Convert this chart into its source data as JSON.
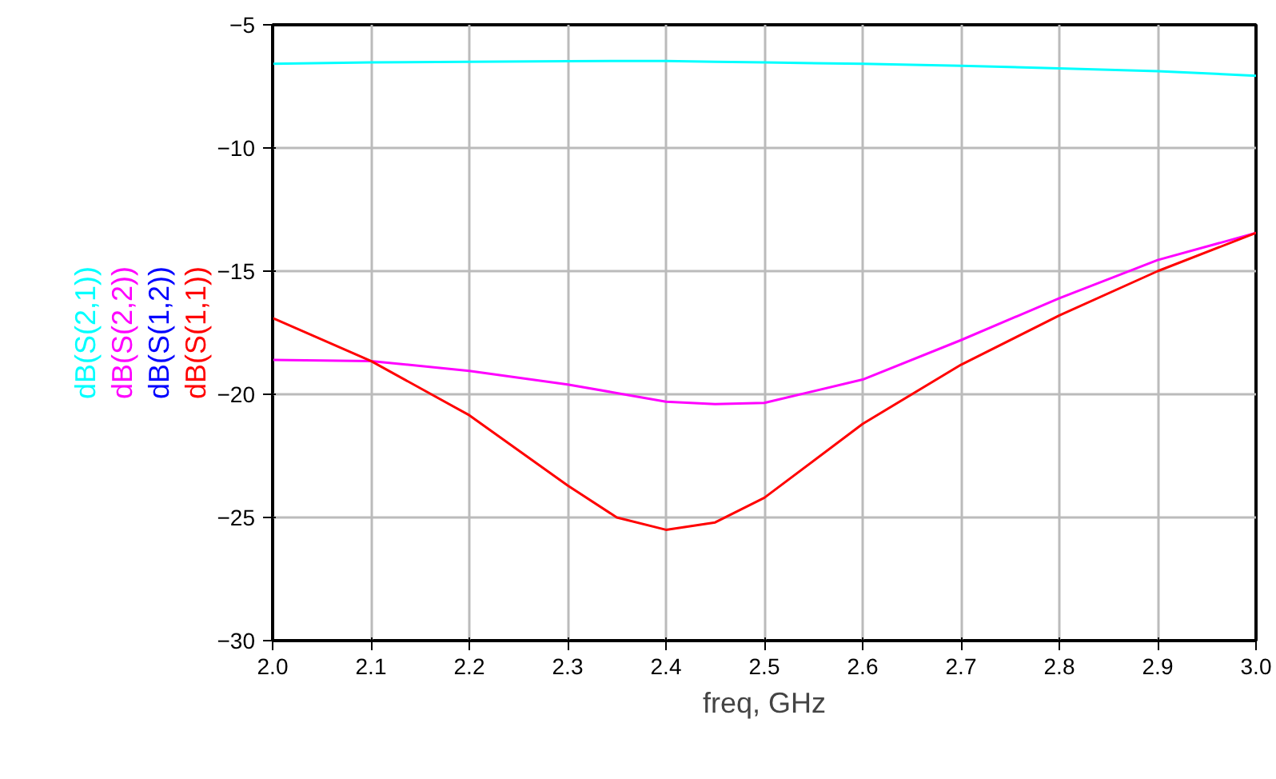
{
  "chart_data": {
    "type": "line",
    "xlabel": "freq, GHz",
    "x": [
      2.0,
      2.1,
      2.2,
      2.3,
      2.35,
      2.4,
      2.45,
      2.5,
      2.6,
      2.7,
      2.8,
      2.9,
      3.0
    ],
    "series": [
      {
        "name": "dB(S(2,1))",
        "color": "#00ffff",
        "values": [
          -6.58,
          -6.53,
          -6.5,
          -6.48,
          -6.47,
          -6.47,
          -6.5,
          -6.53,
          -6.58,
          -6.66,
          -6.77,
          -6.88,
          -7.07
        ]
      },
      {
        "name": "dB(S(2,2))",
        "color": "#ff00ff",
        "values": [
          -18.6,
          -18.65,
          -19.05,
          -19.6,
          -19.95,
          -20.3,
          -20.4,
          -20.35,
          -19.4,
          -17.8,
          -16.1,
          -14.55,
          -13.45
        ]
      },
      {
        "name": "dB(S(1,2))",
        "color": "#0000ff",
        "values": [
          null,
          null,
          null,
          null,
          null,
          null,
          null,
          null,
          null,
          null,
          null,
          null,
          null
        ]
      },
      {
        "name": "dB(S(1,1))",
        "color": "#ff0000",
        "values": [
          -16.9,
          -18.65,
          -20.85,
          -23.7,
          -25.0,
          -25.5,
          -25.2,
          -24.2,
          -21.2,
          -18.8,
          -16.8,
          -15.0,
          -13.45
        ]
      }
    ],
    "xlim": [
      2.0,
      3.0
    ],
    "ylim": [
      -30,
      -5
    ],
    "xticks": [
      {
        "value": 2.0,
        "label": "2.0"
      },
      {
        "value": 2.1,
        "label": "2.1"
      },
      {
        "value": 2.2,
        "label": "2.2"
      },
      {
        "value": 2.3,
        "label": "2.3"
      },
      {
        "value": 2.4,
        "label": "2.4"
      },
      {
        "value": 2.5,
        "label": "2.5"
      },
      {
        "value": 2.6,
        "label": "2.6"
      },
      {
        "value": 2.7,
        "label": "2.7"
      },
      {
        "value": 2.8,
        "label": "2.8"
      },
      {
        "value": 2.9,
        "label": "2.9"
      },
      {
        "value": 3.0,
        "label": "3.0"
      }
    ],
    "yticks": [
      -30,
      -25,
      -20,
      -15,
      -10,
      -5
    ],
    "grid": true,
    "marker": "none",
    "line_style": "solid"
  }
}
